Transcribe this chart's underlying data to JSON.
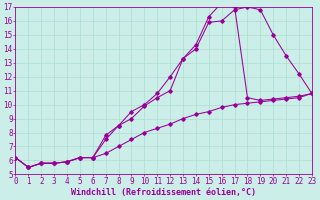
{
  "xlabel": "Windchill (Refroidissement éolien,°C)",
  "xlim": [
    0,
    23
  ],
  "ylim": [
    5,
    17
  ],
  "xticks": [
    0,
    1,
    2,
    3,
    4,
    5,
    6,
    7,
    8,
    9,
    10,
    11,
    12,
    13,
    14,
    15,
    16,
    17,
    18,
    19,
    20,
    21,
    22,
    23
  ],
  "yticks": [
    5,
    6,
    7,
    8,
    9,
    10,
    11,
    12,
    13,
    14,
    15,
    16,
    17
  ],
  "bg_color": "#cceee8",
  "grid_color": "#aaddcc",
  "line_color": "#990099",
  "font_family": "monospace",
  "xlabel_fontsize": 6,
  "tick_fontsize": 5.5,
  "line1_x": [
    0,
    1,
    2,
    3,
    4,
    5,
    6,
    7,
    8,
    9,
    10,
    11,
    12,
    13,
    14,
    15,
    16,
    17,
    18,
    19,
    20,
    21,
    22,
    23
  ],
  "line1_y": [
    6.2,
    5.5,
    5.8,
    5.8,
    5.9,
    6.2,
    6.2,
    6.5,
    7.0,
    7.5,
    8.0,
    8.3,
    8.6,
    9.0,
    9.3,
    9.5,
    9.8,
    10.0,
    10.1,
    10.2,
    10.3,
    10.4,
    10.5,
    10.8
  ],
  "line2_x": [
    0,
    1,
    2,
    3,
    4,
    5,
    6,
    7,
    8,
    9,
    10,
    11,
    12,
    13,
    14,
    15,
    16,
    17,
    18,
    19,
    20,
    21,
    22,
    23
  ],
  "line2_y": [
    6.2,
    5.5,
    5.8,
    5.8,
    5.9,
    6.2,
    6.2,
    7.5,
    8.5,
    9.0,
    9.9,
    10.5,
    11.0,
    13.3,
    14.0,
    15.9,
    16.0,
    16.8,
    17.0,
    16.8,
    15.0,
    13.5,
    12.2,
    10.8
  ],
  "line3_x": [
    0,
    1,
    2,
    3,
    4,
    5,
    6,
    7,
    8,
    9,
    10,
    11,
    12,
    13,
    14,
    15,
    16,
    17,
    18,
    19,
    20,
    21,
    22,
    23
  ],
  "line3_y": [
    6.2,
    5.5,
    5.8,
    5.8,
    5.9,
    6.2,
    6.2,
    7.8,
    8.5,
    9.5,
    10.0,
    10.8,
    12.0,
    13.3,
    14.3,
    16.3,
    17.3,
    17.0,
    10.5,
    10.3,
    10.4,
    10.5,
    10.6,
    10.8
  ]
}
